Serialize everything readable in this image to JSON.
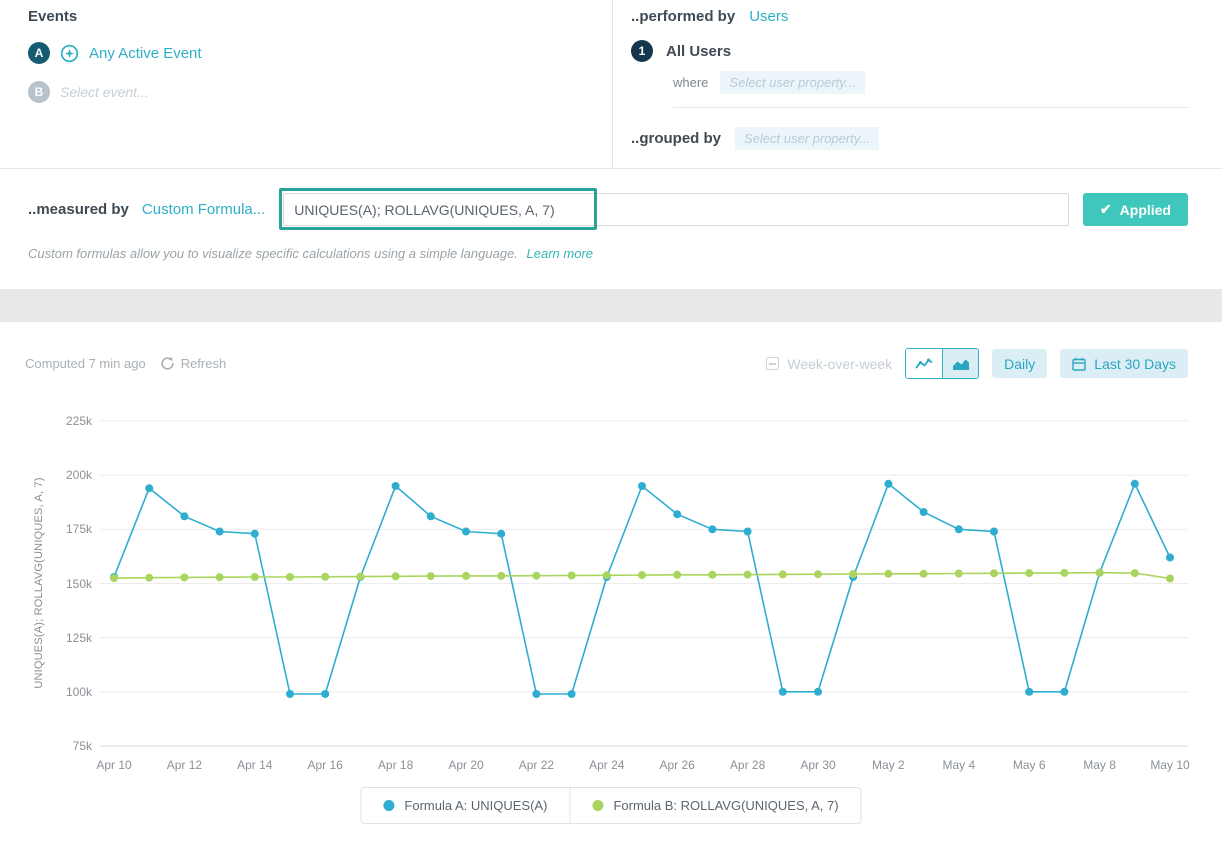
{
  "colors": {
    "accent_teal": "#2eafc6",
    "applied_button": "#40c7bd",
    "annotation_box": "#29a398",
    "series_a": "#2fadd1",
    "series_b": "#a9d55e"
  },
  "events_panel": {
    "title": "Events",
    "row_a": {
      "badge": "A",
      "label": "Any Active Event"
    },
    "row_b": {
      "badge": "B",
      "placeholder": "Select event..."
    }
  },
  "performed_by_panel": {
    "label": "..performed by",
    "link": "Users",
    "row": {
      "badge": "1",
      "label": "All Users"
    },
    "where_label": "where",
    "where_placeholder": "Select user property...",
    "grouped_by_label": "..grouped by",
    "grouped_by_placeholder": "Select user property..."
  },
  "measured_by": {
    "label": "..measured by",
    "link": "Custom Formula...",
    "formula": "UNIQUES(A); ROLLAVG(UNIQUES, A, 7)",
    "applied": "Applied",
    "check": "✔",
    "help": "Custom formulas allow you to visualize specific calculations using a simple language.",
    "learn_more": "Learn more"
  },
  "toolbar": {
    "computed": "Computed 7 min ago",
    "refresh": "Refresh",
    "week_over_week": "Week-over-week",
    "daily": "Daily",
    "date_range": "Last 30 Days"
  },
  "chart_data": {
    "type": "line",
    "ylabel": "UNIQUES(A); ROLLAVG(UNIQUES, A, 7)",
    "ylim": [
      75000,
      225000
    ],
    "ytick_labels": [
      "75k",
      "100k",
      "125k",
      "150k",
      "175k",
      "200k",
      "225k"
    ],
    "grid": true,
    "legend_position": "bottom",
    "xtick_every": 2,
    "x": [
      "Apr 10",
      "Apr 11",
      "Apr 12",
      "Apr 13",
      "Apr 14",
      "Apr 15",
      "Apr 16",
      "Apr 17",
      "Apr 18",
      "Apr 19",
      "Apr 20",
      "Apr 21",
      "Apr 22",
      "Apr 23",
      "Apr 24",
      "Apr 25",
      "Apr 26",
      "Apr 27",
      "Apr 28",
      "Apr 29",
      "Apr 30",
      "May 1",
      "May 2",
      "May 3",
      "May 4",
      "May 5",
      "May 6",
      "May 7",
      "May 8",
      "May 9",
      "May 10"
    ],
    "series": [
      {
        "name": "Formula A: UNIQUES(A)",
        "color": "#2fadd1",
        "values": [
          153000,
          194000,
          181000,
          174000,
          173000,
          99000,
          99000,
          153000,
          195000,
          181000,
          174000,
          173000,
          99000,
          99000,
          153000,
          195000,
          182000,
          175000,
          174000,
          100000,
          100000,
          153000,
          196000,
          183000,
          175000,
          174000,
          100000,
          100000,
          155000,
          196000,
          162000
        ]
      },
      {
        "name": "Formula B: ROLLAVG(UNIQUES, A, 7)",
        "color": "#a9d55e",
        "values": [
          152500,
          152700,
          152800,
          152900,
          153000,
          153000,
          153100,
          153200,
          153300,
          153400,
          153500,
          153500,
          153600,
          153700,
          153800,
          153900,
          154000,
          154000,
          154100,
          154200,
          154300,
          154400,
          154500,
          154500,
          154600,
          154700,
          154800,
          154900,
          155000,
          154800,
          152300
        ]
      }
    ]
  }
}
